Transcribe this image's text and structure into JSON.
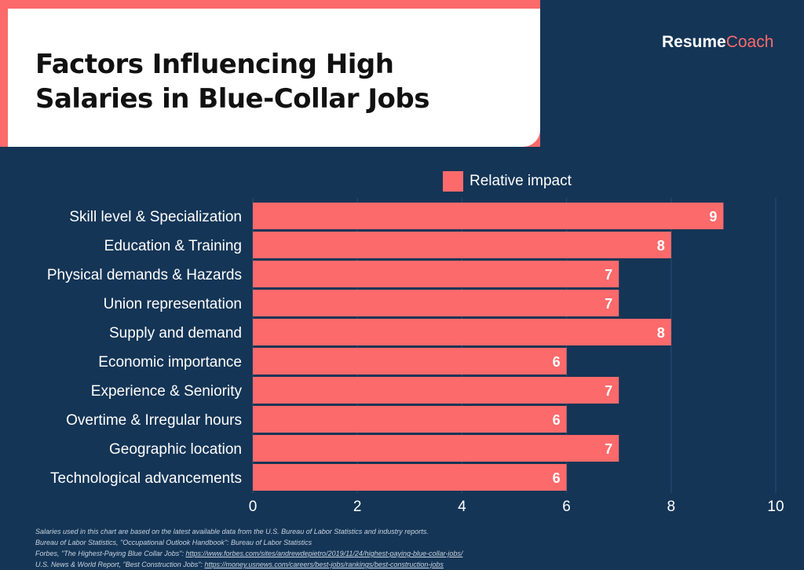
{
  "brand": {
    "name_part1": "Resume",
    "name_part2": "Coach"
  },
  "colors": {
    "background": "#143556",
    "bar": "#fc6a6b",
    "title_box": "#ffffff"
  },
  "chart_data": {
    "type": "bar",
    "orientation": "horizontal",
    "title": "Factors Influencing High Salaries in Blue-Collar Jobs",
    "categories": [
      "Skill level & Specialization",
      "Education & Training",
      "Physical demands & Hazards",
      "Union representation",
      "Supply and demand",
      "Economic importance",
      "Experience & Seniority",
      "Overtime & Irregular hours",
      "Geographic location",
      "Technological advancements"
    ],
    "series": [
      {
        "name": "Relative impact",
        "values": [
          9,
          8,
          7,
          7,
          8,
          6,
          7,
          6,
          7,
          6
        ]
      }
    ],
    "xlim": [
      0,
      10
    ],
    "xticks": [
      0,
      2,
      4,
      6,
      8,
      10
    ],
    "grid": true,
    "legend": "top"
  },
  "footnotes": [
    {
      "text": "Salaries used in this chart are based on the latest available data from the U.S. Bureau of Labor Statistics and industry reports.",
      "link": ""
    },
    {
      "text": "Bureau of Labor Statistics, \"Occupational Outlook Handbook\": Bureau of Labor Statistics",
      "link": ""
    },
    {
      "text": "Forbes, \"The Highest-Paying Blue Collar Jobs\": ",
      "link": "https://www.forbes.com/sites/andrewdepietro/2019/11/24/highest-paying-blue-collar-jobs/"
    },
    {
      "text": "U.S. News & World Report, \"Best Construction Jobs\": ",
      "link": "https://money.usnews.com/careers/best-jobs/rankings/best-construction-jobs"
    }
  ]
}
